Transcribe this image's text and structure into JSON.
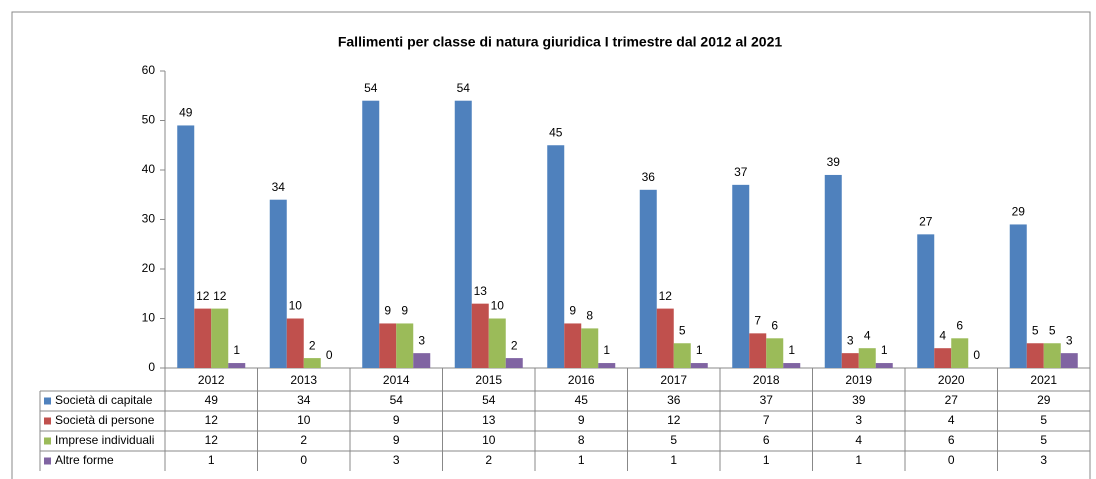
{
  "chart_data": {
    "type": "bar",
    "title": "Fallimenti per classe di natura giuridica I trimestre dal 2012  al 2021",
    "categories": [
      "2012",
      "2013",
      "2014",
      "2015",
      "2016",
      "2017",
      "2018",
      "2019",
      "2020",
      "2021"
    ],
    "series": [
      {
        "name": "Società di capitale",
        "color": "#4f81bd",
        "values": [
          49,
          34,
          54,
          54,
          45,
          36,
          37,
          39,
          27,
          29
        ]
      },
      {
        "name": "Società di persone",
        "color": "#c0504d",
        "values": [
          12,
          10,
          9,
          13,
          9,
          12,
          7,
          3,
          4,
          5
        ]
      },
      {
        "name": "Imprese individuali",
        "color": "#9bbb59",
        "values": [
          12,
          2,
          9,
          10,
          8,
          5,
          6,
          4,
          6,
          5
        ]
      },
      {
        "name": "Altre forme",
        "color": "#8064a2",
        "values": [
          1,
          0,
          3,
          2,
          1,
          1,
          1,
          1,
          0,
          3
        ]
      }
    ],
    "ylim": [
      0,
      60
    ],
    "yticks": [
      0,
      10,
      20,
      30,
      40,
      50,
      60
    ],
    "grid": false
  }
}
